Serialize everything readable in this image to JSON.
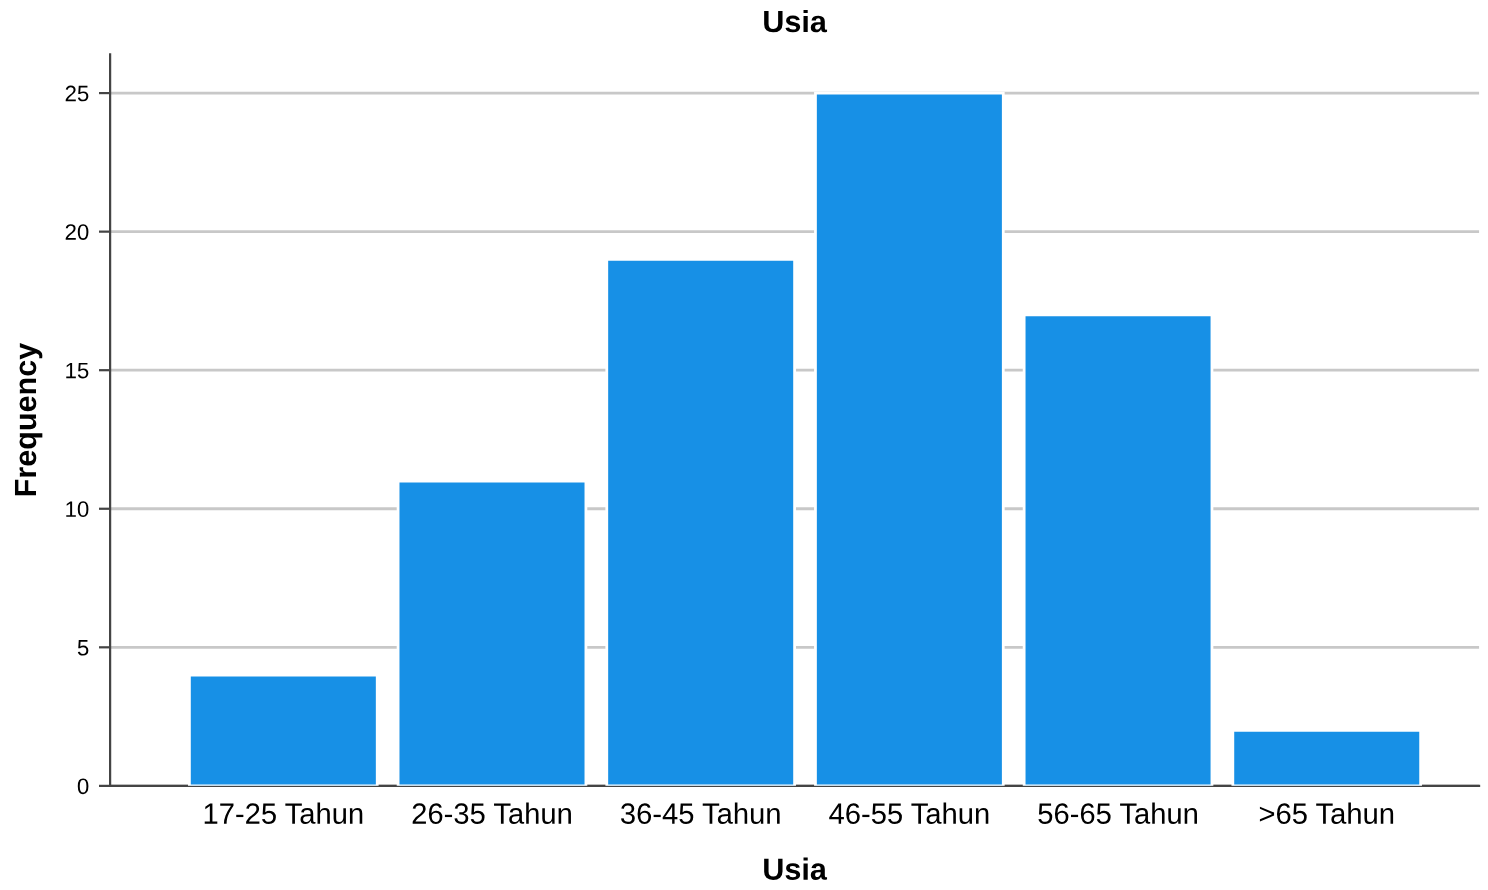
{
  "chart_data": {
    "type": "bar",
    "title": "Usia",
    "xlabel": "Usia",
    "ylabel": "Frequency",
    "categories": [
      "17-25 Tahun",
      "26-35 Tahun",
      "36-45 Tahun",
      "46-55 Tahun",
      "56-65 Tahun",
      ">65 Tahun"
    ],
    "values": [
      4,
      11,
      19,
      25,
      17,
      2
    ],
    "color": "#1790e6",
    "ylim": [
      0,
      26.4
    ],
    "yticks": [
      0,
      5,
      10,
      15,
      20,
      25
    ],
    "grid": "y",
    "legend": false
  }
}
